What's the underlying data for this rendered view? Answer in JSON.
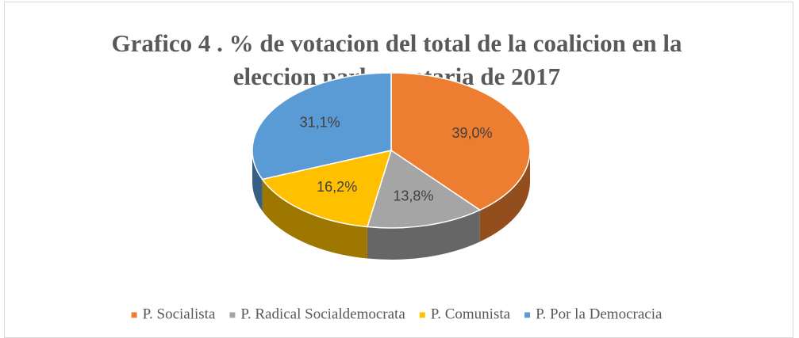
{
  "chart_data": {
    "type": "pie3d",
    "title": "Grafico 4 . % de votacion del total de la coalicion en la eleccion parlamentaria de 2017",
    "title_lines": [
      "Grafico 4 . % de votacion del total de la coalicion en la",
      "eleccion parlamentaria de 2017"
    ],
    "categories": [
      "P. Socialista",
      "P. Radical Socialdemocrata",
      "P. Comunista",
      "P. Por la Democracia"
    ],
    "values": [
      39.0,
      13.8,
      16.2,
      31.1
    ],
    "value_labels": [
      "39,0%",
      "13,8%",
      "16,2%",
      "31,1%"
    ],
    "colors": [
      "#ED7D31",
      "#A5A5A5",
      "#FFC000",
      "#5B9BD5"
    ],
    "legend": "bottom"
  }
}
